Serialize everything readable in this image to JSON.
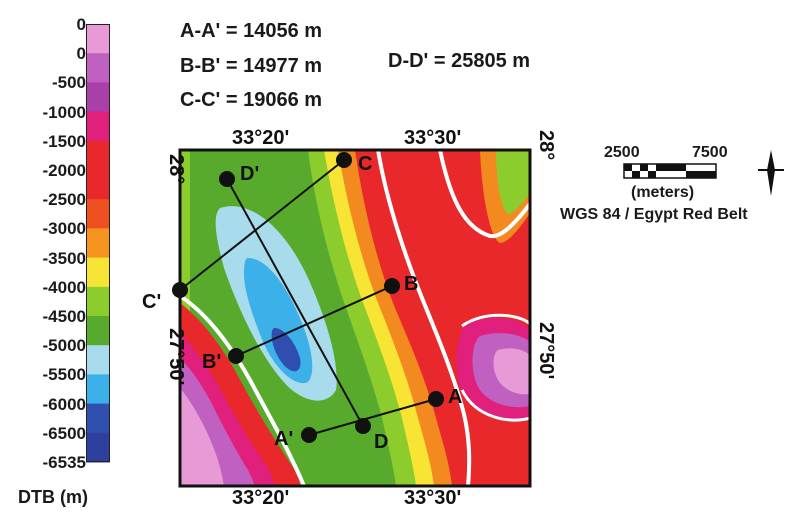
{
  "legend": {
    "unit_label": "DTB (m)",
    "labels": [
      "0",
      "0",
      "-500",
      "-1000",
      "-1500",
      "-2000",
      "-2500",
      "-3000",
      "-3500",
      "-4000",
      "-4500",
      "-5000",
      "-5500",
      "-6000",
      "-6500",
      "-6535"
    ],
    "colors": [
      "#e89ad6",
      "#c060c0",
      "#a840a8",
      "#e0207c",
      "#e8282a",
      "#e8282a",
      "#ee5020",
      "#f59520",
      "#f7e435",
      "#8ccc2c",
      "#58aa2c",
      "#a8dcec",
      "#3cb0e8",
      "#3050b0",
      "#2f3fa0"
    ]
  },
  "distances": {
    "aa": "A-A' = 14056 m",
    "bb": "B-B' = 14977 m",
    "cc": "C-C' = 19066 m",
    "dd": "D-D' = 25805 m"
  },
  "coords": {
    "top_1": "33°20'",
    "top_2": "33°30'",
    "bottom_1": "33°20'",
    "bottom_2": "33°30'",
    "left_top": "28°",
    "right_top": "28°",
    "left_mid": "27°50'",
    "right_mid": "27°50'"
  },
  "points": {
    "A": "A",
    "A_prime": "A'",
    "B": "B",
    "B_prime": "B'",
    "C": "C",
    "C_prime": "C'",
    "D": "D",
    "D_prime": "D'"
  },
  "scale": {
    "left_value": "2500",
    "right_value": "7500",
    "unit": "(meters)",
    "datum": "WGS 84 / Egypt Red Belt"
  }
}
